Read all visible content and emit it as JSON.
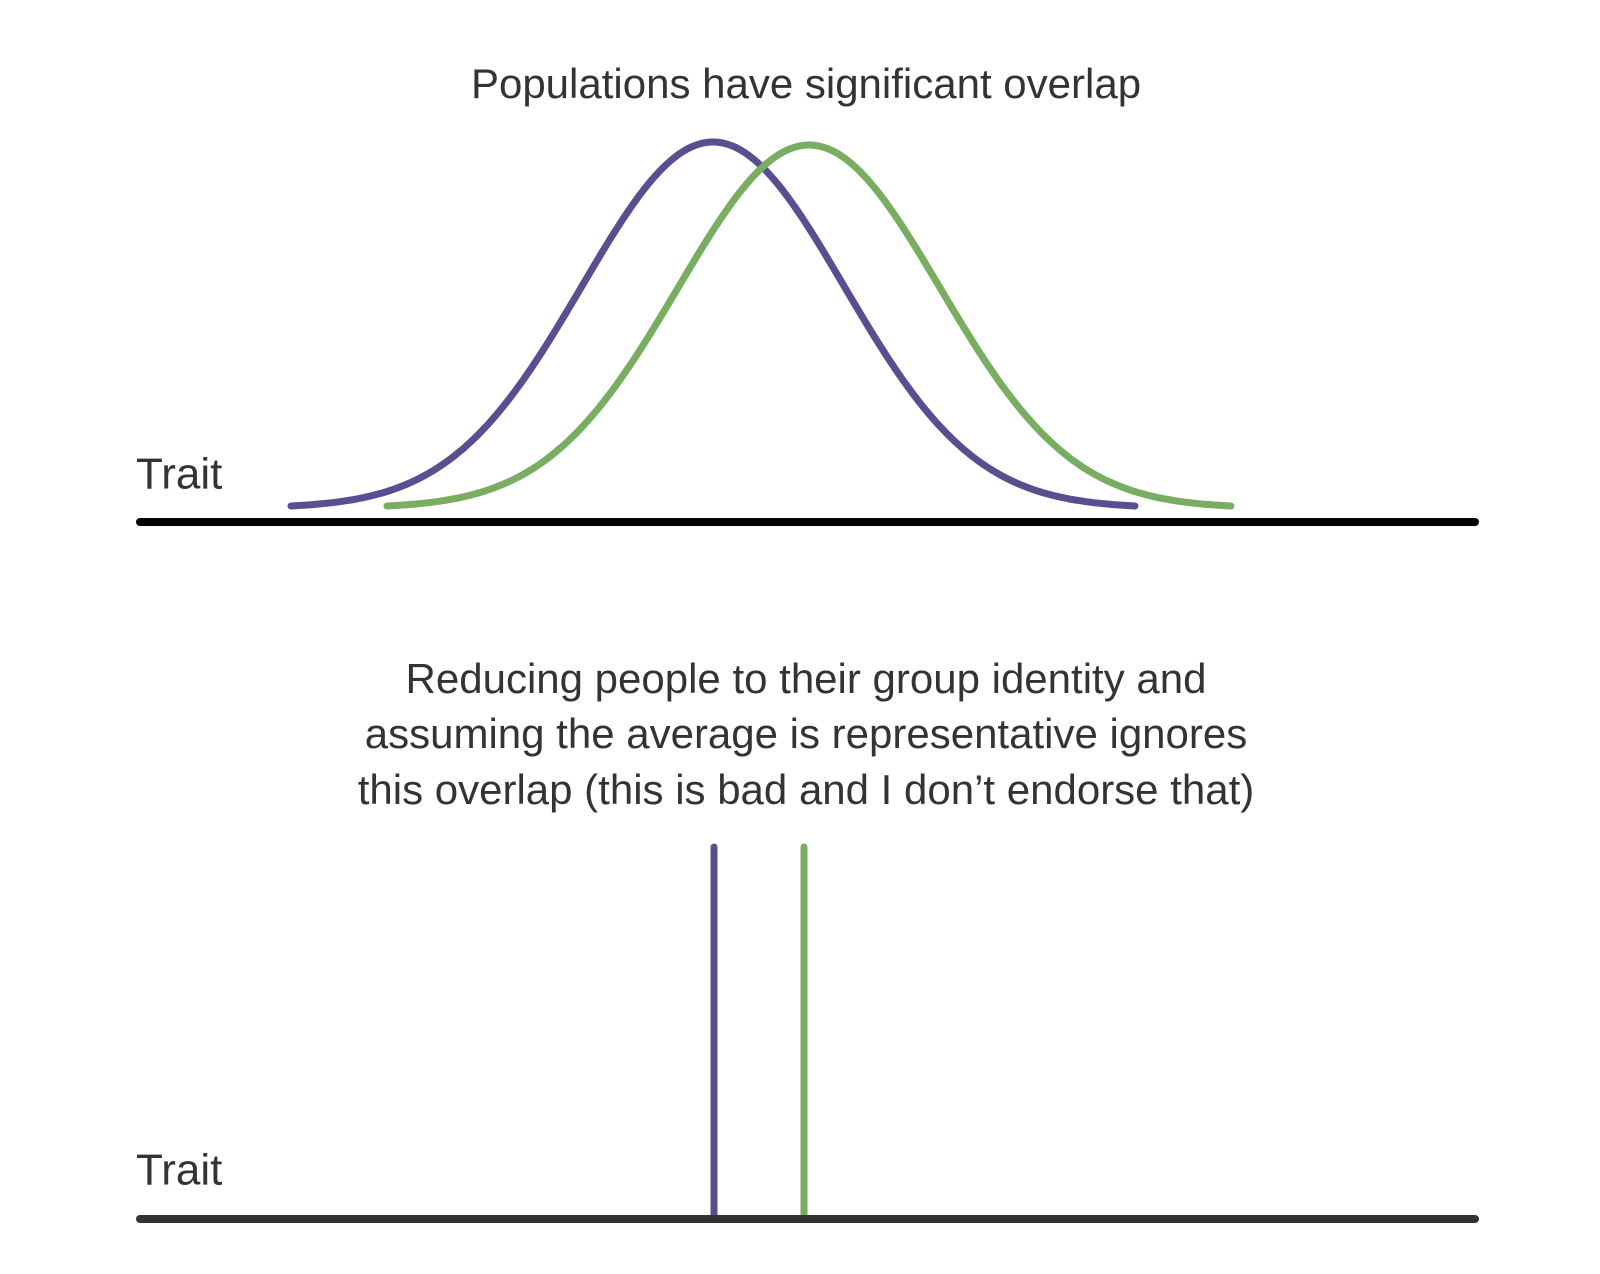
{
  "top_panel": {
    "title": "Populations have significant overlap",
    "axis_label": "Trait"
  },
  "bottom_panel": {
    "title_lines": [
      "Reducing people to their group identity and",
      "assuming the average is representative ignores",
      "this overlap (this is bad and I don’t endorse that)"
    ],
    "axis_label": "Trait"
  }
}
